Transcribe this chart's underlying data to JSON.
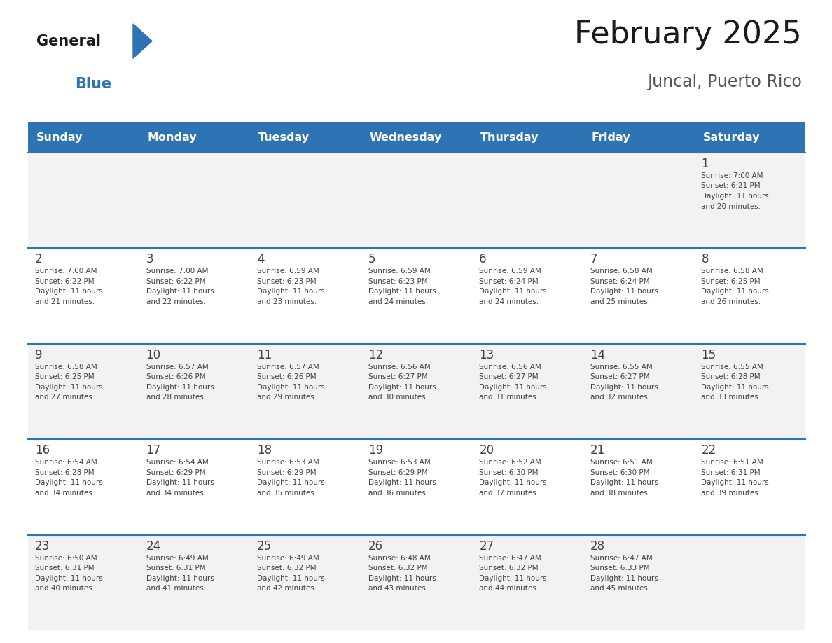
{
  "title": "February 2025",
  "subtitle": "Juncal, Puerto Rico",
  "days_of_week": [
    "Sunday",
    "Monday",
    "Tuesday",
    "Wednesday",
    "Thursday",
    "Friday",
    "Saturday"
  ],
  "header_bg": "#2E74B5",
  "header_text": "#FFFFFF",
  "row_bg_light": "#F2F2F2",
  "row_bg_white": "#FFFFFF",
  "separator_color": "#2E74B5",
  "day_number_color": "#404040",
  "cell_text_color": "#404040",
  "title_color": "#1a1a1a",
  "subtitle_color": "#555555",
  "calendar_data": [
    [
      null,
      null,
      null,
      null,
      null,
      null,
      {
        "day": 1,
        "sunrise": "7:00 AM",
        "sunset": "6:21 PM",
        "daylight": "11 hours\nand 20 minutes."
      }
    ],
    [
      {
        "day": 2,
        "sunrise": "7:00 AM",
        "sunset": "6:22 PM",
        "daylight": "11 hours\nand 21 minutes."
      },
      {
        "day": 3,
        "sunrise": "7:00 AM",
        "sunset": "6:22 PM",
        "daylight": "11 hours\nand 22 minutes."
      },
      {
        "day": 4,
        "sunrise": "6:59 AM",
        "sunset": "6:23 PM",
        "daylight": "11 hours\nand 23 minutes."
      },
      {
        "day": 5,
        "sunrise": "6:59 AM",
        "sunset": "6:23 PM",
        "daylight": "11 hours\nand 24 minutes."
      },
      {
        "day": 6,
        "sunrise": "6:59 AM",
        "sunset": "6:24 PM",
        "daylight": "11 hours\nand 24 minutes."
      },
      {
        "day": 7,
        "sunrise": "6:58 AM",
        "sunset": "6:24 PM",
        "daylight": "11 hours\nand 25 minutes."
      },
      {
        "day": 8,
        "sunrise": "6:58 AM",
        "sunset": "6:25 PM",
        "daylight": "11 hours\nand 26 minutes."
      }
    ],
    [
      {
        "day": 9,
        "sunrise": "6:58 AM",
        "sunset": "6:25 PM",
        "daylight": "11 hours\nand 27 minutes."
      },
      {
        "day": 10,
        "sunrise": "6:57 AM",
        "sunset": "6:26 PM",
        "daylight": "11 hours\nand 28 minutes."
      },
      {
        "day": 11,
        "sunrise": "6:57 AM",
        "sunset": "6:26 PM",
        "daylight": "11 hours\nand 29 minutes."
      },
      {
        "day": 12,
        "sunrise": "6:56 AM",
        "sunset": "6:27 PM",
        "daylight": "11 hours\nand 30 minutes."
      },
      {
        "day": 13,
        "sunrise": "6:56 AM",
        "sunset": "6:27 PM",
        "daylight": "11 hours\nand 31 minutes."
      },
      {
        "day": 14,
        "sunrise": "6:55 AM",
        "sunset": "6:27 PM",
        "daylight": "11 hours\nand 32 minutes."
      },
      {
        "day": 15,
        "sunrise": "6:55 AM",
        "sunset": "6:28 PM",
        "daylight": "11 hours\nand 33 minutes."
      }
    ],
    [
      {
        "day": 16,
        "sunrise": "6:54 AM",
        "sunset": "6:28 PM",
        "daylight": "11 hours\nand 34 minutes."
      },
      {
        "day": 17,
        "sunrise": "6:54 AM",
        "sunset": "6:29 PM",
        "daylight": "11 hours\nand 34 minutes."
      },
      {
        "day": 18,
        "sunrise": "6:53 AM",
        "sunset": "6:29 PM",
        "daylight": "11 hours\nand 35 minutes."
      },
      {
        "day": 19,
        "sunrise": "6:53 AM",
        "sunset": "6:29 PM",
        "daylight": "11 hours\nand 36 minutes."
      },
      {
        "day": 20,
        "sunrise": "6:52 AM",
        "sunset": "6:30 PM",
        "daylight": "11 hours\nand 37 minutes."
      },
      {
        "day": 21,
        "sunrise": "6:51 AM",
        "sunset": "6:30 PM",
        "daylight": "11 hours\nand 38 minutes."
      },
      {
        "day": 22,
        "sunrise": "6:51 AM",
        "sunset": "6:31 PM",
        "daylight": "11 hours\nand 39 minutes."
      }
    ],
    [
      {
        "day": 23,
        "sunrise": "6:50 AM",
        "sunset": "6:31 PM",
        "daylight": "11 hours\nand 40 minutes."
      },
      {
        "day": 24,
        "sunrise": "6:49 AM",
        "sunset": "6:31 PM",
        "daylight": "11 hours\nand 41 minutes."
      },
      {
        "day": 25,
        "sunrise": "6:49 AM",
        "sunset": "6:32 PM",
        "daylight": "11 hours\nand 42 minutes."
      },
      {
        "day": 26,
        "sunrise": "6:48 AM",
        "sunset": "6:32 PM",
        "daylight": "11 hours\nand 43 minutes."
      },
      {
        "day": 27,
        "sunrise": "6:47 AM",
        "sunset": "6:32 PM",
        "daylight": "11 hours\nand 44 minutes."
      },
      {
        "day": 28,
        "sunrise": "6:47 AM",
        "sunset": "6:33 PM",
        "daylight": "11 hours\nand 45 minutes."
      },
      null
    ]
  ]
}
